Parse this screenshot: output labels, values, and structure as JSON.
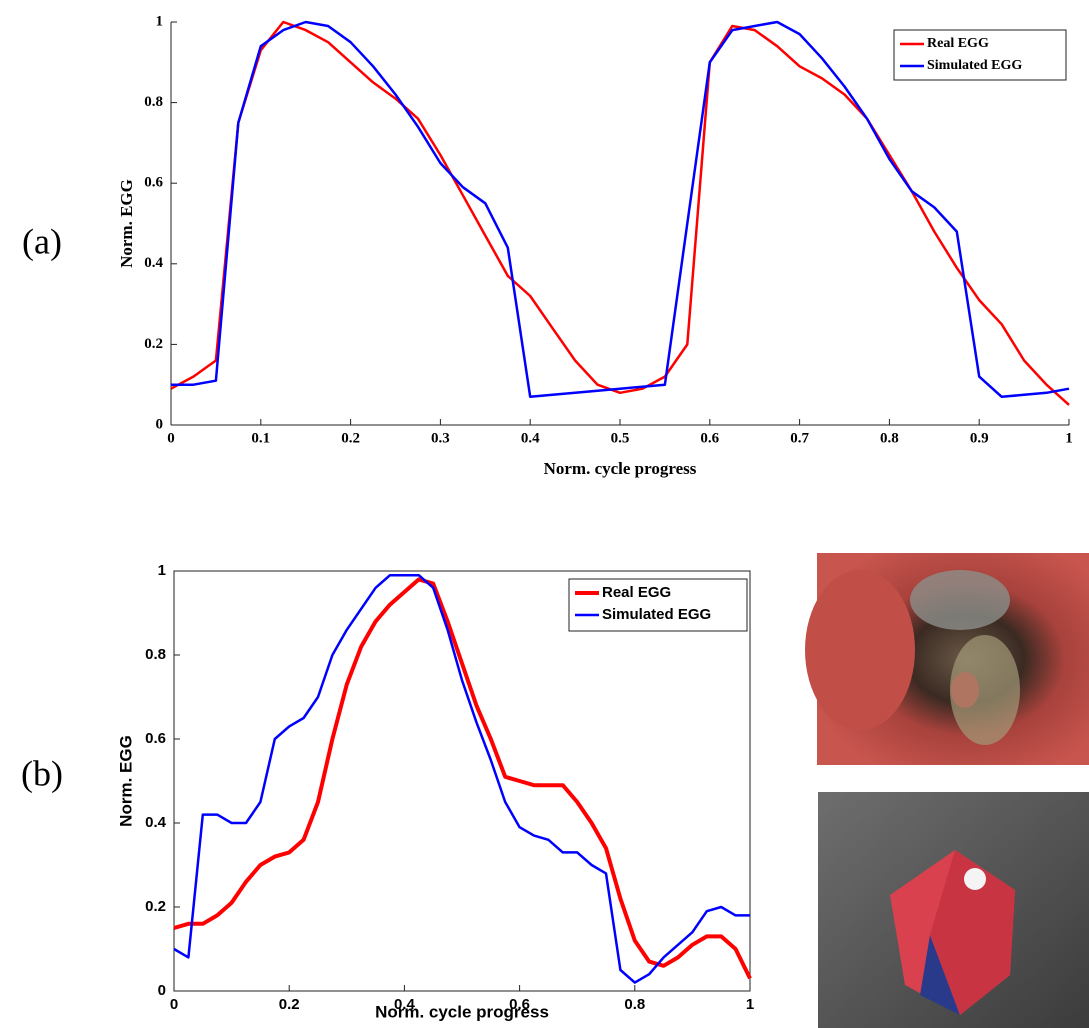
{
  "panel_labels": [
    "(a)",
    "(b)"
  ],
  "chart_data": [
    {
      "type": "line",
      "xlabel": "Norm. cycle progress",
      "ylabel": "Norm. EGG",
      "x": [
        0,
        0.025,
        0.05,
        0.075,
        0.1,
        0.125,
        0.15,
        0.175,
        0.2,
        0.225,
        0.25,
        0.275,
        0.3,
        0.325,
        0.35,
        0.375,
        0.4,
        0.425,
        0.45,
        0.475,
        0.5,
        0.525,
        0.55,
        0.575,
        0.6,
        0.625,
        0.65,
        0.675,
        0.7,
        0.725,
        0.75,
        0.775,
        0.8,
        0.825,
        0.85,
        0.875,
        0.9,
        0.925,
        0.95,
        0.975,
        1
      ],
      "series": [
        {
          "name": "Real EGG",
          "color": "#ff0000",
          "values": [
            0.09,
            0.12,
            0.16,
            0.75,
            0.93,
            1.0,
            0.98,
            0.95,
            0.9,
            0.85,
            0.81,
            0.76,
            0.67,
            0.57,
            0.47,
            0.37,
            0.32,
            0.24,
            0.16,
            0.1,
            0.08,
            0.09,
            0.12,
            0.2,
            0.9,
            0.99,
            0.98,
            0.94,
            0.89,
            0.86,
            0.82,
            0.76,
            0.67,
            0.58,
            0.48,
            0.39,
            0.31,
            0.25,
            0.16,
            0.1,
            0.05
          ]
        },
        {
          "name": "Simulated EGG",
          "color": "#0000ff",
          "values": [
            0.1,
            0.1,
            0.11,
            0.75,
            0.94,
            0.98,
            1.0,
            0.99,
            0.95,
            0.89,
            0.82,
            0.74,
            0.65,
            0.59,
            0.55,
            0.44,
            0.07,
            0.075,
            0.08,
            0.085,
            0.09,
            0.095,
            0.1,
            0.5,
            0.9,
            0.98,
            0.99,
            1.0,
            0.97,
            0.91,
            0.84,
            0.76,
            0.66,
            0.58,
            0.54,
            0.48,
            0.12,
            0.07,
            0.075,
            0.08,
            0.09
          ]
        }
      ],
      "xlim": [
        0,
        1
      ],
      "ylim": [
        0,
        1
      ],
      "xticks": [
        0,
        0.1,
        0.2,
        0.3,
        0.4,
        0.5,
        0.6,
        0.7,
        0.8,
        0.9,
        1
      ],
      "yticks": [
        0,
        0.2,
        0.4,
        0.6,
        0.8,
        1
      ],
      "legend": "upper right"
    },
    {
      "type": "line",
      "xlabel": "Norm. cycle progress",
      "ylabel": "Norm. EGG",
      "x": [
        0,
        0.025,
        0.05,
        0.075,
        0.1,
        0.125,
        0.15,
        0.175,
        0.2,
        0.225,
        0.25,
        0.275,
        0.3,
        0.325,
        0.35,
        0.375,
        0.4,
        0.425,
        0.45,
        0.475,
        0.5,
        0.525,
        0.55,
        0.575,
        0.6,
        0.625,
        0.65,
        0.675,
        0.7,
        0.725,
        0.75,
        0.775,
        0.8,
        0.825,
        0.85,
        0.875,
        0.9,
        0.925,
        0.95,
        0.975,
        1
      ],
      "series": [
        {
          "name": "Real EGG",
          "color": "#ff0000",
          "values": [
            0.15,
            0.16,
            0.16,
            0.18,
            0.21,
            0.26,
            0.3,
            0.32,
            0.33,
            0.36,
            0.45,
            0.6,
            0.73,
            0.82,
            0.88,
            0.92,
            0.95,
            0.98,
            0.97,
            0.88,
            0.78,
            0.68,
            0.6,
            0.51,
            0.5,
            0.49,
            0.49,
            0.49,
            0.45,
            0.4,
            0.34,
            0.22,
            0.12,
            0.07,
            0.06,
            0.08,
            0.11,
            0.13,
            0.13,
            0.1,
            0.03
          ]
        },
        {
          "name": "Simulated EGG",
          "color": "#0000ff",
          "values": [
            0.1,
            0.08,
            0.42,
            0.42,
            0.4,
            0.4,
            0.45,
            0.6,
            0.63,
            0.65,
            0.7,
            0.8,
            0.86,
            0.91,
            0.96,
            0.99,
            0.99,
            0.99,
            0.96,
            0.86,
            0.74,
            0.64,
            0.55,
            0.45,
            0.39,
            0.37,
            0.36,
            0.33,
            0.33,
            0.3,
            0.28,
            0.05,
            0.02,
            0.04,
            0.08,
            0.11,
            0.14,
            0.19,
            0.2,
            0.18,
            0.18
          ]
        }
      ],
      "xlim": [
        0,
        1
      ],
      "ylim": [
        0,
        1
      ],
      "xticks": [
        0,
        0.2,
        0.4,
        0.6,
        0.8,
        1
      ],
      "yticks": [
        0,
        0.2,
        0.4,
        0.6,
        0.8,
        1
      ],
      "legend": "upper right"
    }
  ]
}
